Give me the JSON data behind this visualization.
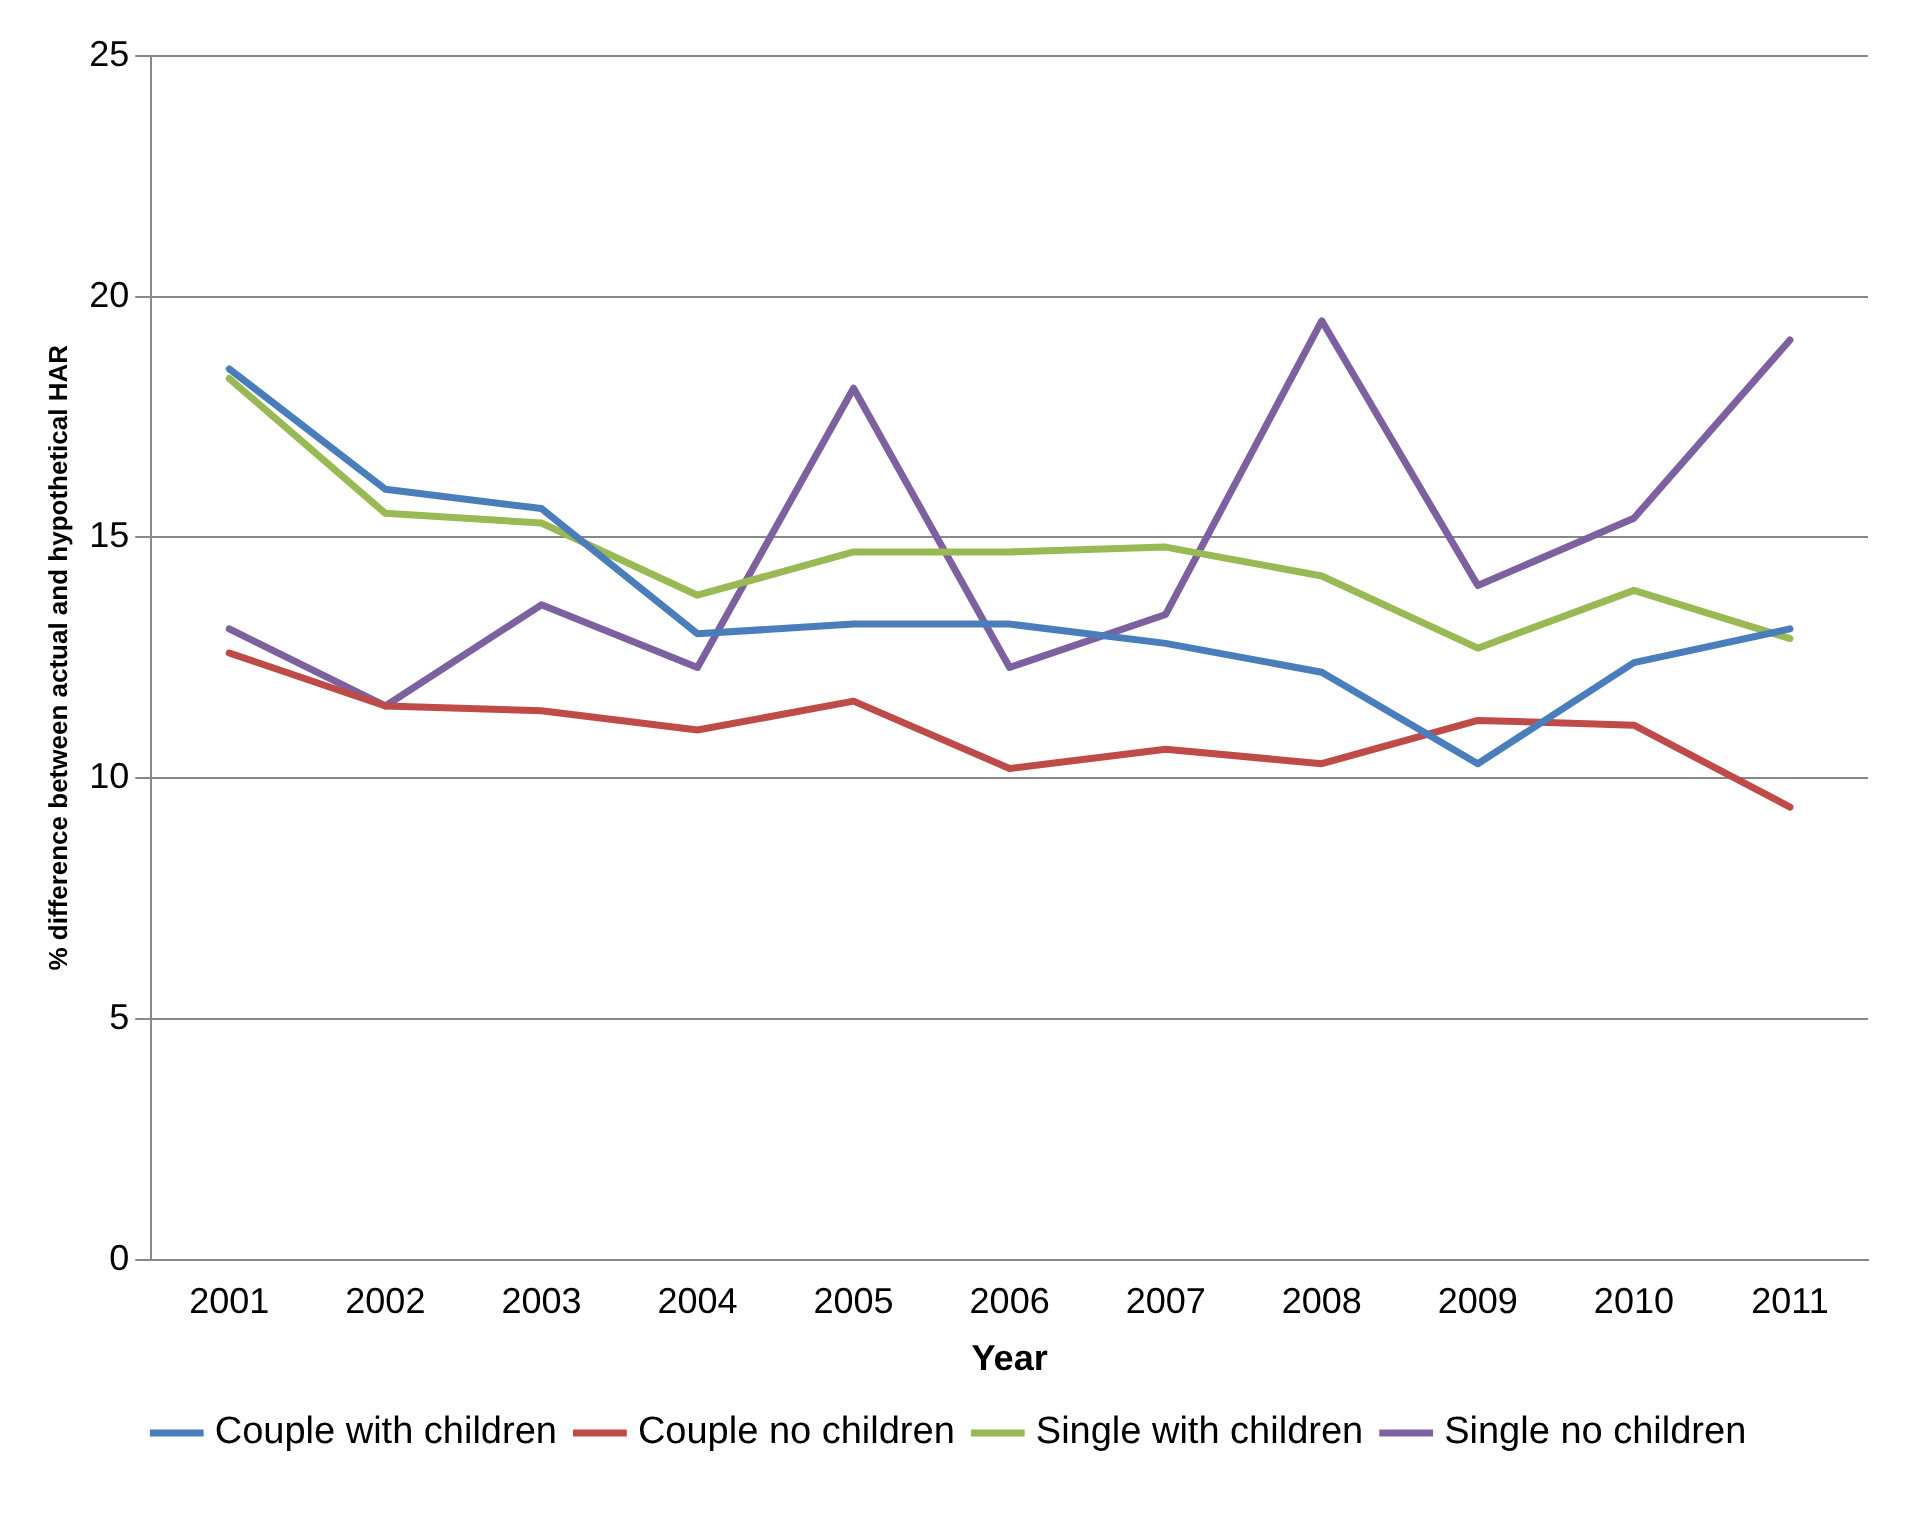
{
  "chart_data": {
    "type": "line",
    "xlabel": "Year",
    "ylabel": "% difference between actual and hypothetical HAR",
    "categories": [
      "2001",
      "2002",
      "2003",
      "2004",
      "2005",
      "2006",
      "2007",
      "2008",
      "2009",
      "2010",
      "2011"
    ],
    "series": [
      {
        "name": "Couple with children",
        "color": "#4a7ebb",
        "values": [
          18.5,
          16.0,
          15.6,
          13.0,
          13.2,
          13.2,
          12.8,
          12.2,
          10.3,
          12.4,
          13.1
        ]
      },
      {
        "name": "Couple no children",
        "color": "#be4b48",
        "values": [
          12.6,
          11.5,
          11.4,
          11.0,
          11.6,
          10.2,
          10.6,
          10.3,
          11.2,
          11.1,
          9.4
        ]
      },
      {
        "name": "Single with children",
        "color": "#98b954",
        "values": [
          18.3,
          15.5,
          15.3,
          13.8,
          14.7,
          14.7,
          14.8,
          14.2,
          12.7,
          13.9,
          12.9
        ]
      },
      {
        "name": "Single no children",
        "color": "#7d60a0",
        "values": [
          13.1,
          11.5,
          13.6,
          12.3,
          18.1,
          12.3,
          13.4,
          19.5,
          14.0,
          15.4,
          19.1
        ]
      }
    ],
    "ylim": [
      0,
      25
    ],
    "yticks": [
      0,
      5,
      10,
      15,
      20,
      25
    ],
    "grid": "y",
    "legend": "bottom",
    "marker": "none",
    "line_style": "solid"
  }
}
